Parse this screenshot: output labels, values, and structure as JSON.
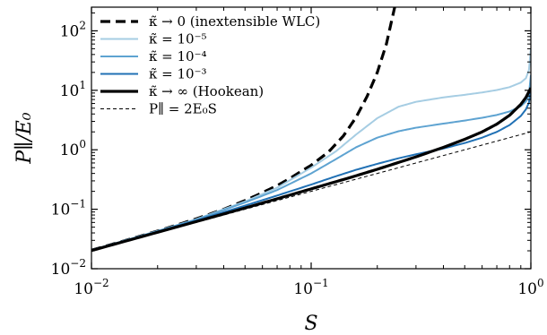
{
  "chart_data": {
    "type": "line",
    "xlabel": "S",
    "ylabel": "P∥/E₀",
    "xscale": "log",
    "yscale": "log",
    "xlim": [
      0.01,
      1.0
    ],
    "ylim": [
      0.01,
      250
    ],
    "grid": false,
    "legend_position": "top-left",
    "xticks": [
      {
        "value": 0.01,
        "base": "10",
        "exp": "−2"
      },
      {
        "value": 0.1,
        "base": "10",
        "exp": "−1"
      },
      {
        "value": 1.0,
        "base": "10",
        "exp": "0"
      }
    ],
    "yticks": [
      {
        "value": 0.01,
        "base": "10",
        "exp": "−2"
      },
      {
        "value": 0.1,
        "base": "10",
        "exp": "−1"
      },
      {
        "value": 1,
        "base": "10",
        "exp": "0"
      },
      {
        "value": 10,
        "base": "10",
        "exp": "1"
      },
      {
        "value": 100,
        "base": "10",
        "exp": "2"
      }
    ],
    "series": [
      {
        "name": "κ̃ → 0 (inextensible WLC)",
        "color": "#000000",
        "style": "dashed",
        "width": "thick",
        "x": [
          0.01,
          0.015,
          0.02,
          0.03,
          0.04,
          0.05,
          0.06,
          0.07,
          0.08,
          0.1,
          0.12,
          0.14,
          0.16,
          0.18,
          0.2,
          0.22,
          0.24
        ],
        "y": [
          0.0205,
          0.0315,
          0.043,
          0.069,
          0.1,
          0.14,
          0.19,
          0.25,
          0.33,
          0.55,
          0.92,
          1.7,
          3.5,
          8,
          20,
          60,
          250
        ]
      },
      {
        "name": "κ̃ = 10⁻⁵",
        "color": "#a6cde3",
        "style": "solid",
        "width": "normal",
        "x": [
          0.01,
          0.02,
          0.03,
          0.05,
          0.07,
          0.1,
          0.13,
          0.16,
          0.2,
          0.25,
          0.3,
          0.4,
          0.5,
          0.6,
          0.7,
          0.8,
          0.9,
          0.95,
          0.98,
          1.0
        ],
        "y": [
          0.0205,
          0.043,
          0.068,
          0.135,
          0.23,
          0.5,
          0.95,
          1.8,
          3.4,
          5.3,
          6.4,
          7.6,
          8.4,
          9.2,
          10.1,
          11.3,
          13.5,
          16,
          22,
          50
        ]
      },
      {
        "name": "κ̃ = 10⁻⁴",
        "color": "#5ea3d1",
        "style": "solid",
        "width": "normal",
        "x": [
          0.01,
          0.02,
          0.03,
          0.05,
          0.07,
          0.1,
          0.13,
          0.16,
          0.2,
          0.25,
          0.3,
          0.4,
          0.5,
          0.6,
          0.7,
          0.8,
          0.9,
          0.95,
          0.98,
          1.0
        ],
        "y": [
          0.0205,
          0.043,
          0.067,
          0.13,
          0.21,
          0.4,
          0.7,
          1.1,
          1.6,
          2.05,
          2.35,
          2.75,
          3.1,
          3.45,
          3.85,
          4.4,
          5.4,
          6.5,
          8.5,
          18
        ]
      },
      {
        "name": "κ̃ = 10⁻³",
        "color": "#2171b5",
        "style": "solid",
        "width": "normal",
        "x": [
          0.01,
          0.02,
          0.03,
          0.05,
          0.07,
          0.1,
          0.13,
          0.16,
          0.2,
          0.25,
          0.3,
          0.4,
          0.5,
          0.6,
          0.7,
          0.8,
          0.9,
          0.95,
          0.98,
          1.0
        ],
        "y": [
          0.0205,
          0.042,
          0.065,
          0.115,
          0.17,
          0.26,
          0.36,
          0.46,
          0.58,
          0.72,
          0.84,
          1.05,
          1.3,
          1.6,
          2.0,
          2.6,
          3.7,
          4.8,
          6.2,
          10
        ]
      },
      {
        "name": "κ̃ → ∞ (Hookean)",
        "color": "#000000",
        "style": "solid",
        "width": "thick",
        "x": [
          0.01,
          0.02,
          0.03,
          0.05,
          0.07,
          0.1,
          0.15,
          0.2,
          0.3,
          0.4,
          0.5,
          0.6,
          0.7,
          0.8,
          0.9,
          0.95,
          0.98,
          1.0
        ],
        "y": [
          0.0202,
          0.041,
          0.062,
          0.105,
          0.15,
          0.22,
          0.34,
          0.47,
          0.76,
          1.1,
          1.5,
          2.0,
          2.7,
          3.8,
          5.8,
          7.6,
          9.5,
          11
        ]
      },
      {
        "name": "P∥ = 2E₀S",
        "color": "#000000",
        "style": "dashed",
        "width": "thin",
        "x": [
          0.01,
          1.0
        ],
        "y": [
          0.02,
          2.0
        ]
      }
    ]
  }
}
